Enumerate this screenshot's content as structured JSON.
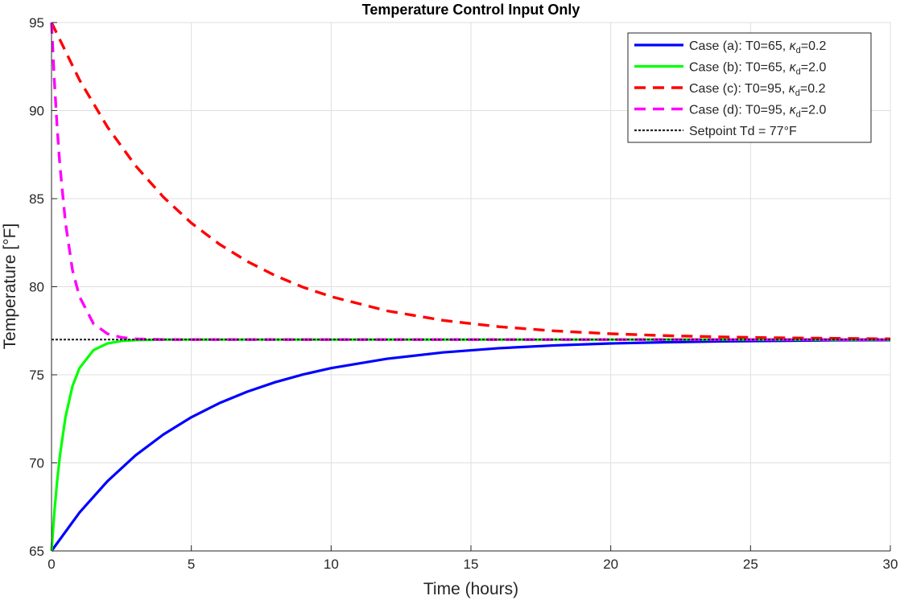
{
  "chart_data": {
    "type": "line",
    "title": "Temperature Control Input Only",
    "xlabel": "Time (hours)",
    "ylabel": "Temperature [°F]",
    "xlim": [
      0,
      30
    ],
    "ylim": [
      65,
      95
    ],
    "xticks": [
      0,
      5,
      10,
      15,
      20,
      25,
      30
    ],
    "yticks": [
      65,
      70,
      75,
      80,
      85,
      90,
      95
    ],
    "grid": true,
    "legend_position": "top-right",
    "series": [
      {
        "name": "Case (a): T0=65, κd=0.2",
        "legend": {
          "prefix": "Case  (a):  T0=65,  ",
          "kappa": "κ",
          "sub": "d",
          "suffix": "=0.2"
        },
        "color": "#0000ff",
        "style": "solid",
        "x": [
          0,
          1,
          2,
          3,
          4,
          5,
          6,
          7,
          8,
          9,
          10,
          12,
          14,
          16,
          18,
          20,
          22,
          24,
          26,
          28,
          30
        ],
        "y": [
          65.0,
          67.18,
          68.96,
          70.42,
          71.61,
          72.59,
          73.39,
          74.04,
          74.58,
          75.02,
          75.38,
          75.91,
          76.27,
          76.51,
          76.67,
          76.78,
          76.85,
          76.9,
          76.93,
          76.96,
          76.97
        ]
      },
      {
        "name": "Case (b): T0=65, κd=2.0",
        "legend": {
          "prefix": "Case  (b):  T0=65,  ",
          "kappa": "κ",
          "sub": "d",
          "suffix": "=2.0"
        },
        "color": "#00ff00",
        "style": "solid",
        "x": [
          0,
          0.1,
          0.2,
          0.3,
          0.5,
          0.75,
          1,
          1.5,
          2,
          2.5,
          3,
          4,
          5,
          10,
          15,
          20,
          25,
          30
        ],
        "y": [
          65.0,
          67.17,
          68.95,
          70.41,
          72.61,
          74.36,
          75.38,
          76.4,
          76.78,
          76.92,
          76.97,
          77.0,
          77.0,
          77.0,
          77.0,
          77.0,
          77.0,
          77.0
        ]
      },
      {
        "name": "Case (c): T0=95, κd=0.2",
        "legend": {
          "prefix": "Case  (c):  T0=95,  ",
          "kappa": "κ",
          "sub": "d",
          "suffix": "=0.2"
        },
        "color": "#ff0000",
        "style": "dashed",
        "x": [
          0,
          1,
          2,
          3,
          4,
          5,
          6,
          7,
          8,
          9,
          10,
          12,
          14,
          16,
          18,
          20,
          22,
          24,
          26,
          28,
          30
        ],
        "y": [
          95.0,
          91.74,
          89.07,
          86.88,
          85.09,
          83.62,
          82.42,
          81.44,
          80.63,
          79.97,
          79.44,
          78.63,
          78.09,
          77.73,
          77.49,
          77.33,
          77.22,
          77.15,
          77.1,
          77.07,
          77.04
        ]
      },
      {
        "name": "Case (d): T0=95, κd=2.0",
        "legend": {
          "prefix": "Case  (d):  T0=95,  ",
          "kappa": "κ",
          "sub": "d",
          "suffix": "=2.0"
        },
        "color": "#ff00ff",
        "style": "dashed",
        "x": [
          0,
          0.1,
          0.2,
          0.3,
          0.5,
          0.75,
          1,
          1.5,
          2,
          2.5,
          3,
          4,
          5,
          10,
          15,
          20,
          25,
          30
        ],
        "y": [
          95.0,
          91.74,
          89.07,
          86.88,
          83.62,
          80.94,
          79.44,
          77.9,
          77.33,
          77.12,
          77.04,
          77.0,
          77.0,
          77.0,
          77.0,
          77.0,
          77.0,
          77.0
        ]
      },
      {
        "name": "Setpoint Td = 77°F",
        "legend": {
          "prefix": "Setpoint Td = 77°F",
          "kappa": "",
          "sub": "",
          "suffix": ""
        },
        "color": "#262626",
        "style": "dotted",
        "x": [
          0,
          30
        ],
        "y": [
          77,
          77
        ]
      }
    ]
  }
}
